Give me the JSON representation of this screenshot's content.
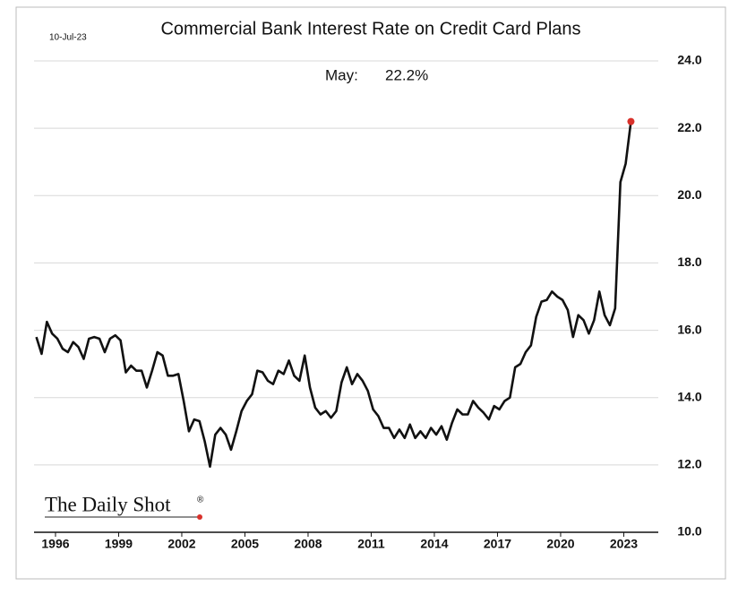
{
  "chart_data": {
    "type": "line",
    "title": "Commercial Bank Interest Rate on Credit Card Plans",
    "date": "10-Jul-23",
    "annotation": {
      "text": "May:",
      "label": "22.2%"
    },
    "logo": "The Daily Shot",
    "logo_mark": "®",
    "x": [
      1995.09,
      1995.34,
      1995.59,
      1995.84,
      1996.09,
      1996.34,
      1996.59,
      1996.84,
      1997.09,
      1997.34,
      1997.59,
      1997.84,
      1998.09,
      1998.34,
      1998.59,
      1998.84,
      1999.09,
      1999.34,
      1999.59,
      1999.84,
      2000.09,
      2000.34,
      2000.59,
      2000.84,
      2001.09,
      2001.34,
      2001.59,
      2001.84,
      2002.09,
      2002.34,
      2002.59,
      2002.84,
      2003.09,
      2003.34,
      2003.59,
      2003.84,
      2004.09,
      2004.34,
      2004.59,
      2004.84,
      2005.09,
      2005.34,
      2005.59,
      2005.84,
      2006.09,
      2006.34,
      2006.59,
      2006.84,
      2007.09,
      2007.34,
      2007.59,
      2007.84,
      2008.09,
      2008.34,
      2008.59,
      2008.84,
      2009.09,
      2009.34,
      2009.59,
      2009.84,
      2010.09,
      2010.34,
      2010.59,
      2010.84,
      2011.09,
      2011.34,
      2011.59,
      2011.84,
      2012.09,
      2012.34,
      2012.59,
      2012.84,
      2013.09,
      2013.34,
      2013.59,
      2013.84,
      2014.09,
      2014.34,
      2014.59,
      2014.84,
      2015.09,
      2015.34,
      2015.59,
      2015.84,
      2016.09,
      2016.34,
      2016.59,
      2016.84,
      2017.09,
      2017.34,
      2017.59,
      2017.84,
      2018.09,
      2018.34,
      2018.59,
      2018.84,
      2019.09,
      2019.34,
      2019.59,
      2019.84,
      2020.09,
      2020.34,
      2020.59,
      2020.84,
      2021.09,
      2021.34,
      2021.59,
      2021.84,
      2022.09,
      2022.34,
      2022.59,
      2022.84,
      2023.09,
      2023.34
    ],
    "series": [
      {
        "color": "#111111",
        "marker_color": "#d9312b",
        "values": [
          15.8,
          15.3,
          16.25,
          15.9,
          15.75,
          15.45,
          15.35,
          15.65,
          15.5,
          15.15,
          15.75,
          15.8,
          15.75,
          15.35,
          15.75,
          15.85,
          15.7,
          14.75,
          14.95,
          14.8,
          14.8,
          14.3,
          14.8,
          15.35,
          15.25,
          14.65,
          14.65,
          14.7,
          13.9,
          13.0,
          13.35,
          13.3,
          12.7,
          11.95,
          12.9,
          13.1,
          12.9,
          12.45,
          13.0,
          13.6,
          13.9,
          14.1,
          14.8,
          14.75,
          14.5,
          14.4,
          14.8,
          14.7,
          15.1,
          14.65,
          14.5,
          15.25,
          14.3,
          13.7,
          13.5,
          13.6,
          13.4,
          13.6,
          14.45,
          14.9,
          14.4,
          14.7,
          14.5,
          14.2,
          13.65,
          13.45,
          13.1,
          13.1,
          12.8,
          13.05,
          12.8,
          13.2,
          12.8,
          13.0,
          12.8,
          13.1,
          12.9,
          13.15,
          12.75,
          13.25,
          13.65,
          13.5,
          13.5,
          13.9,
          13.7,
          13.55,
          13.35,
          13.75,
          13.65,
          13.9,
          14.0,
          14.9,
          15.0,
          15.35,
          15.55,
          16.4,
          16.85,
          16.9,
          17.15,
          17.0,
          16.9,
          16.6,
          15.8,
          16.45,
          16.3,
          15.9,
          16.3,
          17.15,
          16.45,
          16.15,
          16.65,
          20.4,
          20.95,
          22.2
        ]
      }
    ],
    "xlim": [
      1994.98,
      2024.64
    ],
    "xticks": [
      1996,
      1999,
      2002,
      2005,
      2008,
      2011,
      2014,
      2017,
      2020,
      2023
    ],
    "ylim": [
      10,
      24
    ],
    "yticks": [
      {
        "value": 10,
        "label": "10.0"
      },
      {
        "value": 12,
        "label": "12.0"
      },
      {
        "value": 14,
        "label": "14.0"
      },
      {
        "value": 16,
        "label": "16.0"
      },
      {
        "value": 18,
        "label": "18.0"
      },
      {
        "value": 20,
        "label": "20.0"
      },
      {
        "value": 22,
        "label": "22.0"
      },
      {
        "value": 24,
        "label": "24.0"
      }
    ],
    "grid": true,
    "y_axis_side": "right"
  }
}
